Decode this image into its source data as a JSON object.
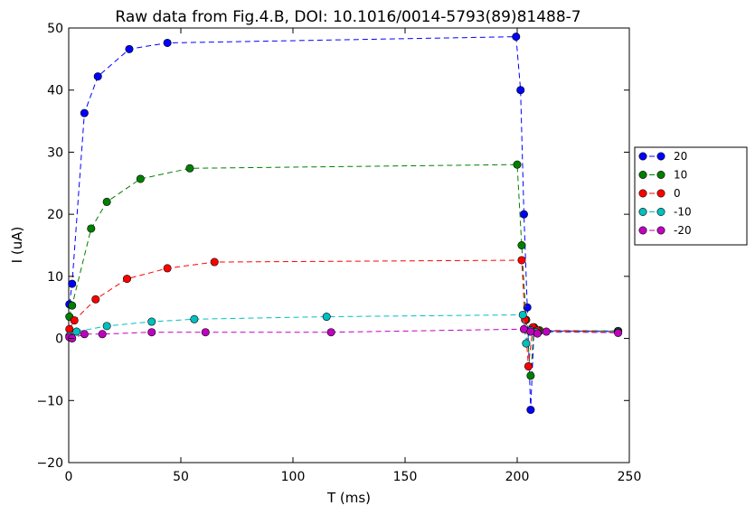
{
  "chart_data": {
    "type": "line",
    "title": "Raw data from Fig.4.B, DOI: 10.1016/0014-5793(89)81488-7",
    "xlabel": "T (ms)",
    "ylabel": "I (uA)",
    "xlim": [
      0,
      250
    ],
    "ylim": [
      -20,
      50
    ],
    "xticks": [
      0,
      50,
      100,
      150,
      200,
      250
    ],
    "yticks": [
      -20,
      -10,
      0,
      10,
      20,
      30,
      40,
      50
    ],
    "grid": false,
    "legend_position": "outside-right",
    "line_style": "dashed",
    "marker": "circle",
    "series": [
      {
        "name": "20",
        "color": "#0000ff",
        "x": [
          0.3,
          1.5,
          7,
          13,
          27,
          44,
          199.5,
          201.5,
          203,
          204.5,
          206,
          207.5,
          210,
          245
        ],
        "y": [
          5.5,
          8.8,
          36.3,
          42.2,
          46.6,
          47.6,
          48.6,
          40,
          20,
          5,
          -11.5,
          1.5,
          1.2,
          1.2
        ]
      },
      {
        "name": "10",
        "color": "#007f00",
        "x": [
          0.3,
          1.5,
          10,
          17,
          32,
          54,
          200,
          202,
          204,
          206,
          207.5,
          210,
          245
        ],
        "y": [
          3.5,
          5.3,
          17.7,
          22,
          25.7,
          27.4,
          28,
          15,
          3,
          -6,
          1.8,
          1.3,
          1.2
        ]
      },
      {
        "name": "0",
        "color": "#ff0000",
        "x": [
          0.3,
          2.5,
          12,
          26,
          44,
          65,
          202,
          203.5,
          205,
          207,
          209,
          245
        ],
        "y": [
          1.5,
          2.9,
          6.3,
          9.6,
          11.3,
          12.3,
          12.6,
          3,
          -4.5,
          1.8,
          1.3,
          1.0
        ]
      },
      {
        "name": "-10",
        "color": "#00bfbf",
        "x": [
          0.3,
          3.5,
          17,
          37,
          56,
          115,
          202.5,
          204,
          206,
          208.5,
          245
        ],
        "y": [
          0.4,
          1.1,
          2,
          2.7,
          3.1,
          3.5,
          3.8,
          -0.8,
          1.3,
          1.0,
          1.0
        ]
      },
      {
        "name": "-20",
        "color": "#bf00bf",
        "x": [
          0.3,
          1.5,
          7,
          15,
          37,
          61,
          117,
          203,
          206,
          209,
          213,
          245
        ],
        "y": [
          0.2,
          0,
          0.7,
          0.7,
          1.0,
          1.0,
          1.0,
          1.5,
          1.1,
          0.8,
          1.1,
          0.9
        ]
      }
    ]
  }
}
